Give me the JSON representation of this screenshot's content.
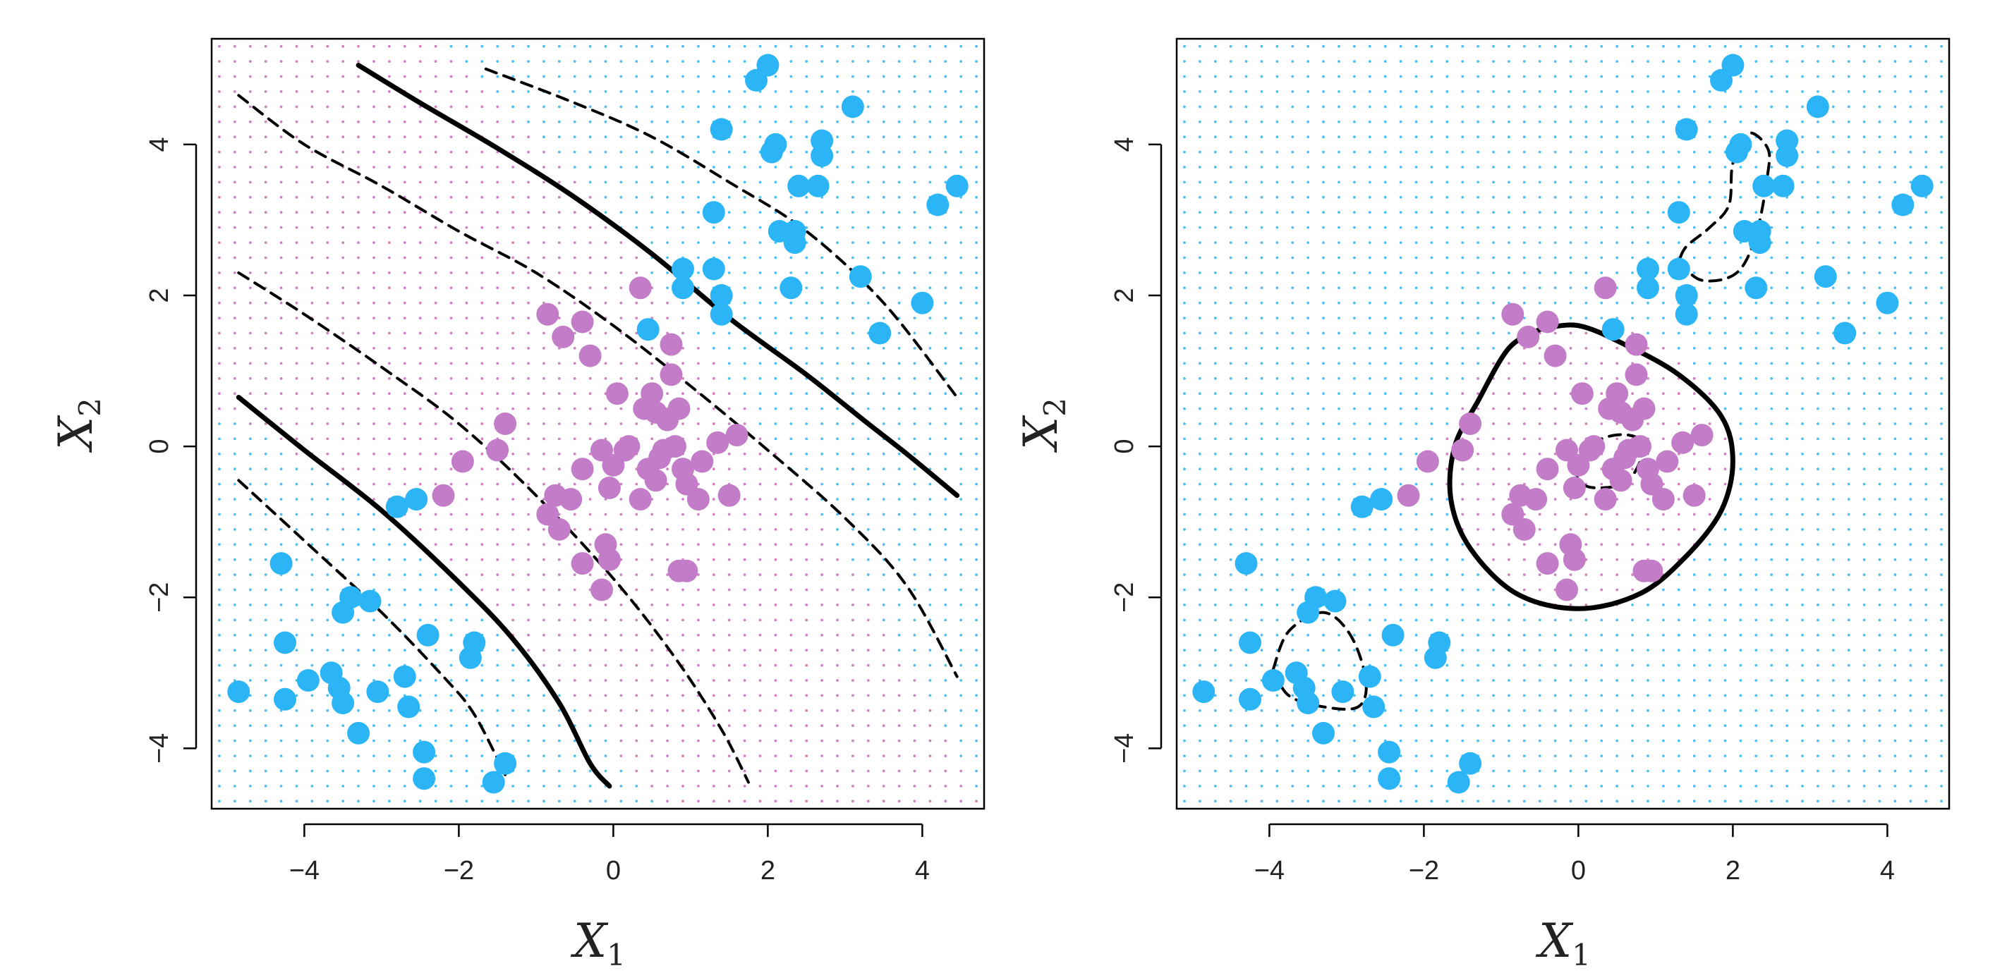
{
  "figure": {
    "background": "#ffffff",
    "colors": {
      "class_blue": "#2BB5F6",
      "class_purple": "#C27CC8",
      "region_blue_dot": "#2BB5F6",
      "region_purple_dot": "#C86AB8",
      "boundary": "#000000",
      "frame": "#000000"
    }
  },
  "chart_data": [
    {
      "type": "scatter",
      "panel": "left",
      "xlabel": "X1",
      "ylabel": "X2",
      "xlabel_main": "X",
      "xlabel_sub": "1",
      "ylabel_main": "X",
      "ylabel_sub": "2",
      "xlim": [
        -5.2,
        4.8
      ],
      "ylim": [
        -4.8,
        5.4
      ],
      "xticks": [
        -4,
        -2,
        0,
        2,
        4
      ],
      "yticks": [
        -4,
        -2,
        0,
        2,
        4
      ],
      "xtick_labels": [
        "−4",
        "−2",
        "0",
        "2",
        "4"
      ],
      "ytick_labels": [
        "−4",
        "−2",
        "0",
        "2",
        "4"
      ],
      "grid": false,
      "background_region_grid": true,
      "series": [
        {
          "class": "blue",
          "points": [
            [
              -4.85,
              -3.25
            ],
            [
              -4.3,
              -1.55
            ],
            [
              -4.25,
              -2.6
            ],
            [
              -4.25,
              -3.35
            ],
            [
              -3.95,
              -3.1
            ],
            [
              -3.65,
              -3.0
            ],
            [
              -3.55,
              -3.2
            ],
            [
              -3.5,
              -3.4
            ],
            [
              -3.5,
              -2.2
            ],
            [
              -3.4,
              -2.0
            ],
            [
              -3.3,
              -3.8
            ],
            [
              -3.15,
              -2.05
            ],
            [
              -3.05,
              -3.25
            ],
            [
              -2.7,
              -3.05
            ],
            [
              -2.65,
              -3.45
            ],
            [
              -2.45,
              -4.05
            ],
            [
              -2.45,
              -4.4
            ],
            [
              -2.4,
              -2.5
            ],
            [
              -1.8,
              -2.6
            ],
            [
              -1.85,
              -2.8
            ],
            [
              -1.55,
              -4.45
            ],
            [
              -1.4,
              -4.2
            ],
            [
              -2.8,
              -0.8
            ],
            [
              -2.55,
              -0.7
            ],
            [
              0.45,
              1.55
            ],
            [
              0.9,
              2.35
            ],
            [
              0.9,
              2.1
            ],
            [
              1.3,
              2.35
            ],
            [
              1.3,
              3.1
            ],
            [
              1.4,
              1.75
            ],
            [
              1.4,
              2.0
            ],
            [
              1.4,
              4.2
            ],
            [
              1.85,
              4.85
            ],
            [
              2.0,
              5.05
            ],
            [
              2.05,
              3.9
            ],
            [
              2.1,
              4.0
            ],
            [
              2.15,
              2.85
            ],
            [
              2.35,
              2.85
            ],
            [
              2.35,
              2.7
            ],
            [
              2.3,
              2.1
            ],
            [
              2.4,
              3.45
            ],
            [
              2.65,
              3.45
            ],
            [
              2.7,
              3.85
            ],
            [
              2.7,
              4.05
            ],
            [
              3.1,
              4.5
            ],
            [
              3.2,
              2.25
            ],
            [
              3.45,
              1.5
            ],
            [
              4.0,
              1.9
            ],
            [
              4.2,
              3.2
            ],
            [
              4.45,
              3.45
            ]
          ]
        },
        {
          "class": "purple",
          "points": [
            [
              -2.2,
              -0.65
            ],
            [
              -1.95,
              -0.2
            ],
            [
              -1.5,
              -0.05
            ],
            [
              -1.4,
              0.3
            ],
            [
              -0.85,
              1.75
            ],
            [
              -0.65,
              1.45
            ],
            [
              -0.4,
              1.65
            ],
            [
              -0.3,
              1.2
            ],
            [
              -0.15,
              -0.05
            ],
            [
              -0.85,
              -0.9
            ],
            [
              -0.75,
              -0.65
            ],
            [
              -0.7,
              -1.1
            ],
            [
              -0.55,
              -0.7
            ],
            [
              -0.4,
              -0.3
            ],
            [
              -0.4,
              -1.55
            ],
            [
              -0.15,
              -1.9
            ],
            [
              -0.1,
              -1.3
            ],
            [
              -0.05,
              -1.5
            ],
            [
              -0.05,
              -0.55
            ],
            [
              0.0,
              -0.25
            ],
            [
              0.05,
              0.7
            ],
            [
              0.15,
              -0.05
            ],
            [
              0.2,
              0.0
            ],
            [
              0.35,
              -0.7
            ],
            [
              0.35,
              2.1
            ],
            [
              0.4,
              0.5
            ],
            [
              0.45,
              -0.3
            ],
            [
              0.5,
              0.7
            ],
            [
              0.55,
              0.45
            ],
            [
              0.55,
              -0.45
            ],
            [
              0.6,
              -0.15
            ],
            [
              0.65,
              -0.05
            ],
            [
              0.7,
              0.35
            ],
            [
              0.75,
              0.95
            ],
            [
              0.75,
              1.35
            ],
            [
              0.8,
              0.0
            ],
            [
              0.85,
              -1.65
            ],
            [
              0.85,
              0.5
            ],
            [
              0.9,
              -0.3
            ],
            [
              0.95,
              -1.65
            ],
            [
              0.95,
              -0.5
            ],
            [
              1.1,
              -0.7
            ],
            [
              1.15,
              -0.2
            ],
            [
              1.35,
              0.05
            ],
            [
              1.5,
              -0.65
            ],
            [
              1.6,
              0.15
            ]
          ]
        }
      ],
      "boundary": {
        "solid": [
          [
            [
              -3.3,
              5.05
            ],
            [
              -2.5,
              4.55
            ],
            [
              -1.5,
              3.95
            ],
            [
              -0.5,
              3.3
            ],
            [
              0.5,
              2.55
            ],
            [
              1.5,
              1.7
            ],
            [
              2.5,
              0.95
            ],
            [
              3.3,
              0.3
            ],
            [
              3.8,
              -0.1
            ],
            [
              4.45,
              -0.65
            ]
          ],
          [
            [
              -4.85,
              0.65
            ],
            [
              -4.0,
              -0.05
            ],
            [
              -3.0,
              -0.85
            ],
            [
              -2.0,
              -1.8
            ],
            [
              -1.3,
              -2.55
            ],
            [
              -0.7,
              -3.4
            ],
            [
              -0.3,
              -4.2
            ],
            [
              -0.05,
              -4.5
            ]
          ]
        ],
        "dashed": [
          [
            [
              -1.65,
              5.0
            ],
            [
              -0.5,
              4.55
            ],
            [
              0.5,
              4.1
            ],
            [
              1.5,
              3.5
            ],
            [
              2.5,
              2.85
            ],
            [
              3.5,
              1.9
            ],
            [
              4.45,
              0.65
            ]
          ],
          [
            [
              -4.85,
              4.65
            ],
            [
              -4.0,
              4.0
            ],
            [
              -3.0,
              3.45
            ],
            [
              -2.0,
              2.85
            ],
            [
              -1.0,
              2.3
            ],
            [
              0.0,
              1.6
            ],
            [
              1.0,
              0.8
            ],
            [
              2.0,
              -0.05
            ],
            [
              3.0,
              -0.95
            ],
            [
              3.8,
              -1.85
            ],
            [
              4.45,
              -3.05
            ]
          ],
          [
            [
              -4.85,
              2.3
            ],
            [
              -4.0,
              1.75
            ],
            [
              -3.0,
              1.05
            ],
            [
              -2.0,
              0.3
            ],
            [
              -1.0,
              -0.65
            ],
            [
              0.0,
              -1.75
            ],
            [
              0.8,
              -2.8
            ],
            [
              1.4,
              -3.75
            ],
            [
              1.75,
              -4.45
            ]
          ],
          [
            [
              -4.85,
              -0.45
            ],
            [
              -4.0,
              -1.25
            ],
            [
              -3.0,
              -2.2
            ],
            [
              -2.2,
              -3.05
            ],
            [
              -1.8,
              -3.55
            ],
            [
              -1.4,
              -4.35
            ]
          ]
        ]
      }
    },
    {
      "type": "scatter",
      "panel": "right",
      "xlabel": "X1",
      "ylabel": "X2",
      "xlabel_main": "X",
      "xlabel_sub": "1",
      "ylabel_main": "X",
      "ylabel_sub": "2",
      "xlim": [
        -5.2,
        4.8
      ],
      "ylim": [
        -4.8,
        5.4
      ],
      "xticks": [
        -4,
        -2,
        0,
        2,
        4
      ],
      "yticks": [
        -4,
        -2,
        0,
        2,
        4
      ],
      "xtick_labels": [
        "−4",
        "−2",
        "0",
        "2",
        "4"
      ],
      "ytick_labels": [
        "−4",
        "−2",
        "0",
        "2",
        "4"
      ],
      "grid": false,
      "background_region_grid": true,
      "same_points_as": "left",
      "boundary": {
        "solid": [
          [
            [
              -0.5,
              1.55
            ],
            [
              0.0,
              1.6
            ],
            [
              0.6,
              1.35
            ],
            [
              1.3,
              0.95
            ],
            [
              1.85,
              0.4
            ],
            [
              2.0,
              -0.2
            ],
            [
              1.85,
              -0.85
            ],
            [
              1.4,
              -1.45
            ],
            [
              0.8,
              -1.95
            ],
            [
              0.0,
              -2.15
            ],
            [
              -0.8,
              -1.95
            ],
            [
              -1.4,
              -1.35
            ],
            [
              -1.65,
              -0.7
            ],
            [
              -1.6,
              0.0
            ],
            [
              -1.3,
              0.6
            ],
            [
              -0.9,
              1.3
            ],
            [
              -0.5,
              1.55
            ]
          ]
        ],
        "dashed": [
          [
            [
              1.3,
              2.45
            ],
            [
              1.6,
              2.2
            ],
            [
              2.05,
              2.3
            ],
            [
              2.3,
              2.8
            ],
            [
              2.45,
              3.6
            ],
            [
              2.45,
              3.95
            ],
            [
              2.2,
              4.15
            ],
            [
              2.0,
              3.75
            ],
            [
              1.95,
              3.2
            ],
            [
              1.7,
              2.9
            ],
            [
              1.4,
              2.65
            ],
            [
              1.3,
              2.45
            ]
          ],
          [
            [
              -3.95,
              -2.95
            ],
            [
              -3.75,
              -2.45
            ],
            [
              -3.3,
              -2.2
            ],
            [
              -2.95,
              -2.5
            ],
            [
              -2.75,
              -3.1
            ],
            [
              -2.85,
              -3.45
            ],
            [
              -3.3,
              -3.45
            ],
            [
              -3.75,
              -3.3
            ],
            [
              -3.95,
              -2.95
            ]
          ],
          [
            [
              0.0,
              -0.15
            ],
            [
              0.3,
              0.1
            ],
            [
              0.65,
              0.15
            ],
            [
              0.85,
              0.0
            ],
            [
              0.65,
              -0.45
            ],
            [
              0.25,
              -0.55
            ],
            [
              0.0,
              -0.45
            ],
            [
              0.0,
              -0.15
            ]
          ]
        ]
      }
    }
  ]
}
